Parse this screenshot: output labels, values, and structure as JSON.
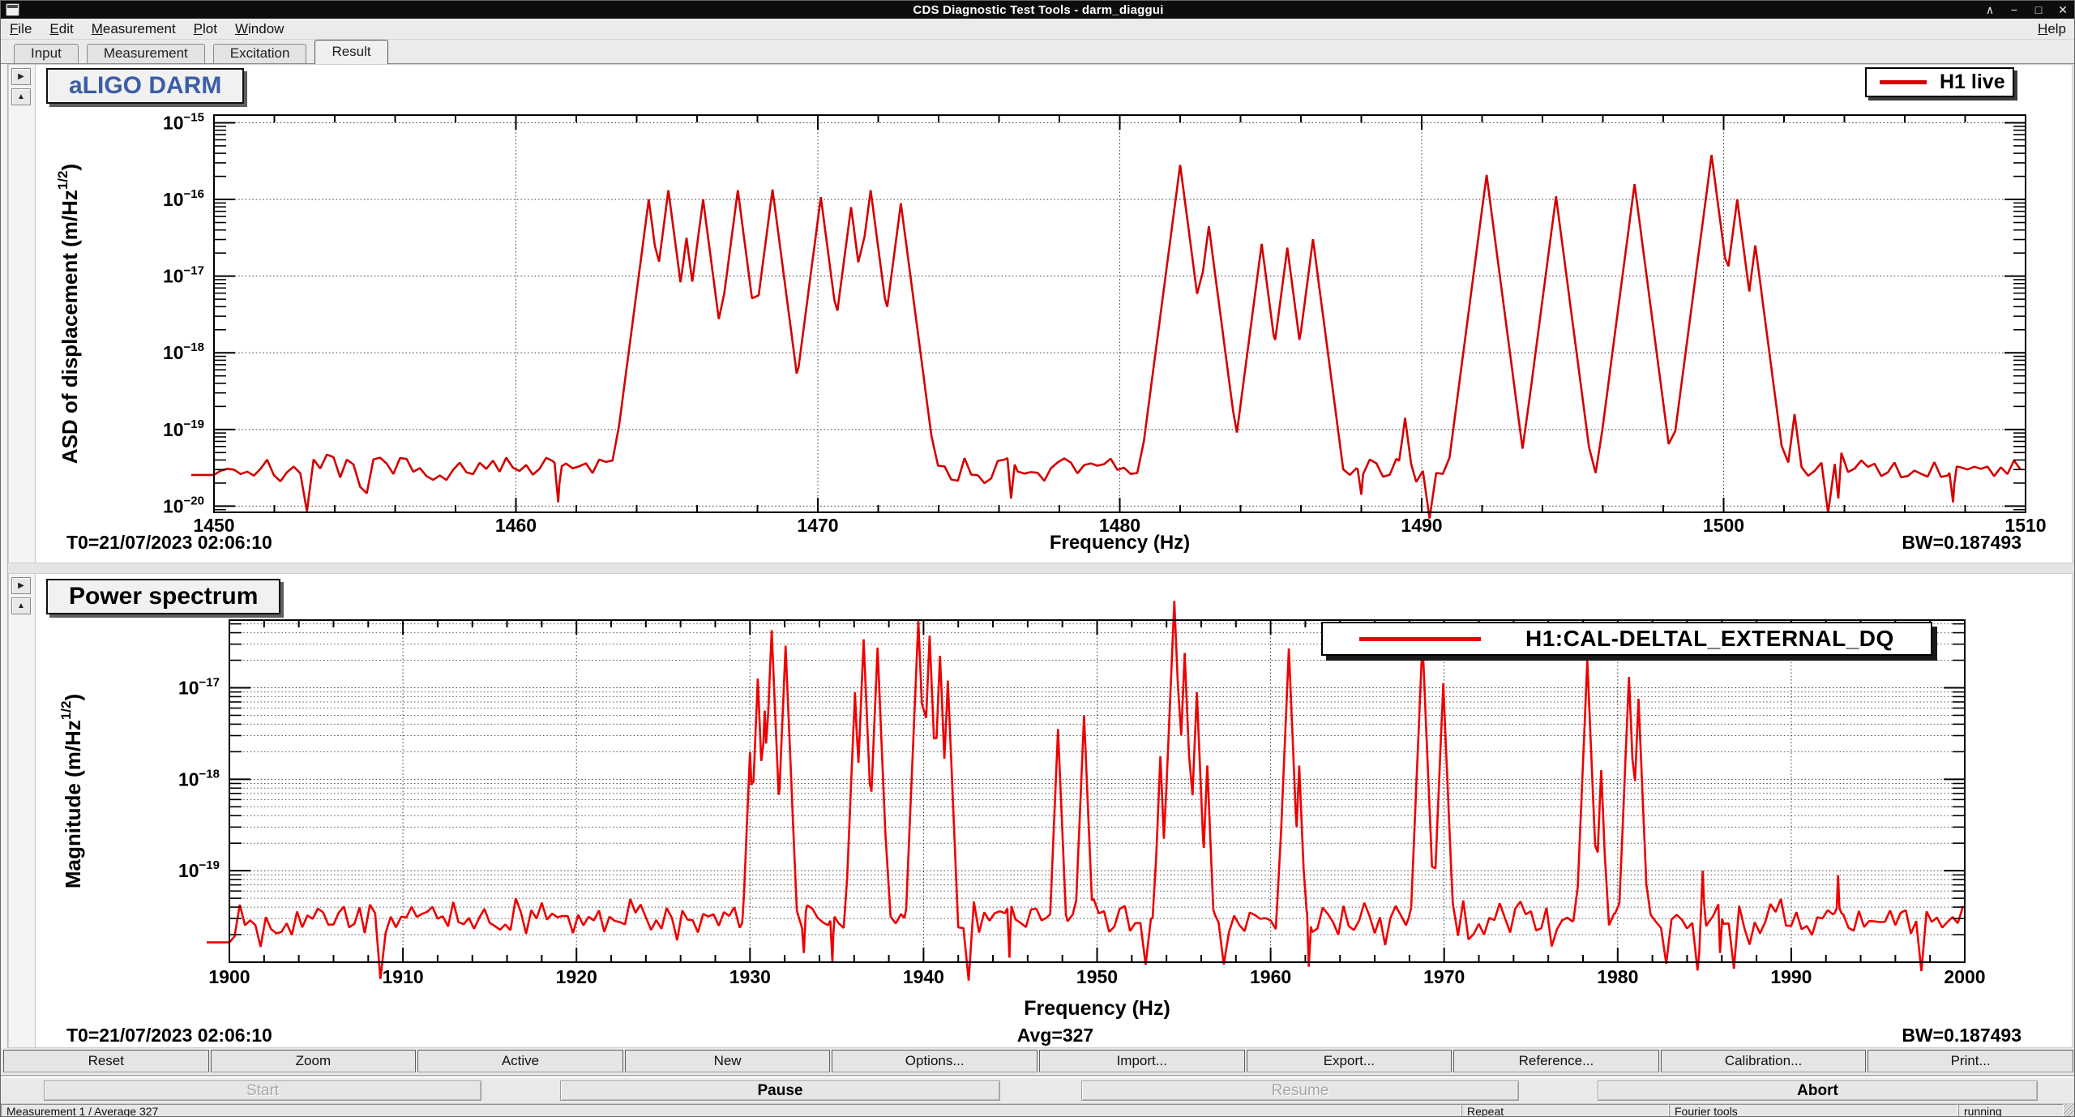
{
  "window": {
    "title": "CDS Diagnostic Test Tools - darm_diaggui",
    "controls": [
      "∧",
      "−",
      "□",
      "✕"
    ]
  },
  "menu": {
    "items": [
      "File",
      "Edit",
      "Measurement",
      "Plot",
      "Window"
    ],
    "help": "Help"
  },
  "tabs": [
    "Input",
    "Measurement",
    "Excitation",
    "Result"
  ],
  "active_tab": "Result",
  "icons": {
    "expand_right": "▶",
    "scroll_up": "▲"
  },
  "buttons_row": [
    "Reset",
    "Zoom",
    "Active",
    "New",
    "Options...",
    "Import...",
    "Export...",
    "Reference...",
    "Calibration...",
    "Print..."
  ],
  "control_buttons": [
    {
      "label": "Start",
      "enabled": false
    },
    {
      "label": "Pause",
      "enabled": true
    },
    {
      "label": "Resume",
      "enabled": false
    },
    {
      "label": "Abort",
      "enabled": true
    }
  ],
  "statusbar": {
    "measurement": "Measurement 1 / Average 327",
    "repeat": "Repeat",
    "tools": "Fourier tools",
    "state": "running"
  },
  "chart_data": [
    {
      "type": "line",
      "title": "aLIGO DARM",
      "title_color": "#3b5ea6",
      "legend": "H1 live",
      "line_color": "#d40000",
      "xlabel": "Frequency (Hz)",
      "ylabel_pre": "ASD of displacement (m/Hz",
      "ylabel_sup": "1/2",
      "ylabel_post": ")",
      "t0": "T0=21/07/2023 02:06:10",
      "bw": "BW=0.187493",
      "xlim": [
        1450,
        1510
      ],
      "x_ticks": [
        1450,
        1460,
        1470,
        1480,
        1490,
        1500,
        1510
      ],
      "x_minor_step": 2,
      "ylog": [
        -20.08,
        -14.9
      ],
      "y_decades": [
        -15,
        -16,
        -17,
        -18,
        -19,
        -20
      ],
      "minor_hgrid": false,
      "noise_floor_log": -19.52,
      "noise_jitter": 0.12,
      "noise_step": 0.22,
      "peak_slope": 3.0,
      "seed": 7,
      "peaks": [
        [
          1464.4,
          -16.0
        ],
        [
          1465.05,
          -15.88
        ],
        [
          1465.65,
          -16.5
        ],
        [
          1466.2,
          -16.0
        ],
        [
          1467.35,
          -15.88
        ],
        [
          1468.5,
          -15.87
        ],
        [
          1470.1,
          -15.97
        ],
        [
          1471.1,
          -16.1
        ],
        [
          1471.75,
          -15.88
        ],
        [
          1472.75,
          -16.05
        ],
        [
          1482.0,
          -15.55
        ],
        [
          1482.95,
          -16.35
        ],
        [
          1484.7,
          -16.58
        ],
        [
          1485.55,
          -16.63
        ],
        [
          1486.4,
          -16.52
        ],
        [
          1489.45,
          -18.85
        ],
        [
          1492.15,
          -15.68
        ],
        [
          1494.45,
          -15.96
        ],
        [
          1497.05,
          -15.8
        ],
        [
          1499.6,
          -15.42
        ],
        [
          1500.45,
          -16.0
        ],
        [
          1501.05,
          -16.6
        ],
        [
          1502.35,
          -18.8
        ]
      ],
      "dips": [
        [
          1461.4,
          -19.95
        ],
        [
          1476.4,
          -19.9
        ],
        [
          1488.0,
          -19.85
        ],
        [
          1503.8,
          -19.9
        ],
        [
          1507.6,
          -19.95
        ]
      ]
    },
    {
      "type": "line",
      "title": "Power spectrum",
      "title_color": "#000000",
      "legend": "H1:CAL-DELTAL_EXTERNAL_DQ",
      "line_color": "#ee0000",
      "xlabel": "Frequency (Hz)",
      "ylabel_pre": "Magnitude (m/Hz",
      "ylabel_sup": "1/2",
      "ylabel_post": ")",
      "t0": "T0=21/07/2023 02:06:10",
      "avg": "Avg=327",
      "bw": "BW=0.187493",
      "xlim": [
        1900,
        2000
      ],
      "x_ticks": [
        1900,
        1910,
        1920,
        1930,
        1940,
        1950,
        1960,
        1970,
        1980,
        1990,
        2000
      ],
      "x_minor_step": 2,
      "ylog": [
        -20.0,
        -16.26
      ],
      "y_decades": [
        -17,
        -18,
        -19
      ],
      "minor_hgrid": true,
      "noise_floor_log": -19.52,
      "noise_jitter": 0.14,
      "noise_step": 0.3,
      "peak_slope": 4.5,
      "seed": 13,
      "peaks": [
        [
          1930.0,
          -17.7
        ],
        [
          1930.45,
          -16.9
        ],
        [
          1930.85,
          -17.25
        ],
        [
          1931.25,
          -16.37
        ],
        [
          1932.05,
          -16.54
        ],
        [
          1936.05,
          -17.05
        ],
        [
          1936.55,
          -16.47
        ],
        [
          1937.35,
          -16.56
        ],
        [
          1939.7,
          -16.27
        ],
        [
          1940.35,
          -16.43
        ],
        [
          1940.95,
          -16.65
        ],
        [
          1941.4,
          -16.92
        ],
        [
          1947.75,
          -17.45
        ],
        [
          1949.25,
          -17.3
        ],
        [
          1953.65,
          -17.75
        ],
        [
          1954.45,
          -16.05
        ],
        [
          1955.05,
          -16.62
        ],
        [
          1955.75,
          -17.05
        ],
        [
          1956.35,
          -17.85
        ],
        [
          1961.05,
          -16.57
        ],
        [
          1961.65,
          -17.85
        ],
        [
          1968.75,
          -16.48
        ],
        [
          1969.95,
          -16.95
        ],
        [
          1978.25,
          -16.7
        ],
        [
          1979.05,
          -17.9
        ],
        [
          1980.65,
          -16.88
        ],
        [
          1981.2,
          -17.12
        ],
        [
          1984.9,
          -19.0
        ],
        [
          1992.7,
          -19.05
        ]
      ],
      "dips": [
        [
          1933.1,
          -19.9
        ],
        [
          1934.75,
          -20.0
        ],
        [
          1944.95,
          -19.95
        ],
        [
          1962.2,
          -20.05
        ],
        [
          1985.9,
          -19.9
        ],
        [
          1997.45,
          -19.9
        ]
      ]
    }
  ]
}
